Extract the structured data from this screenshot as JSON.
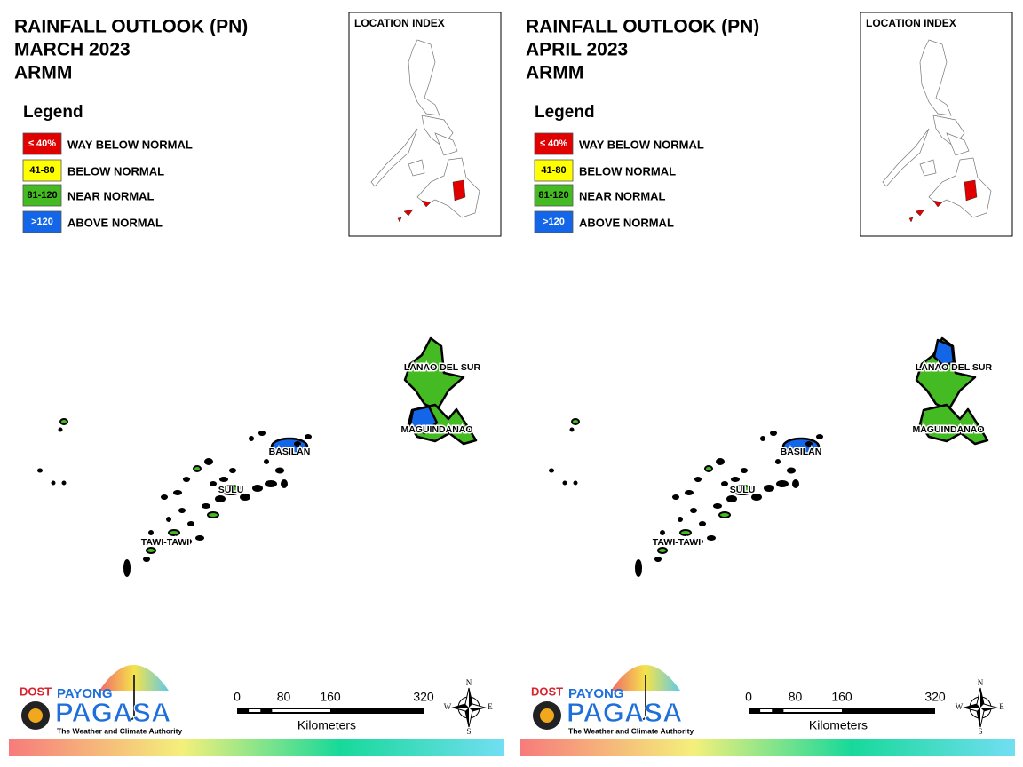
{
  "panels": [
    {
      "title": [
        "RAINFALL OUTLOOK (PN)",
        "MARCH 2023",
        "ARMM"
      ],
      "legend": {
        "title": "Legend",
        "items": [
          {
            "swatch": "≤ 40%",
            "label": "WAY BELOW NORMAL",
            "color": "#e00000"
          },
          {
            "swatch": "41-80",
            "label": "BELOW NORMAL",
            "color": "#ffff00"
          },
          {
            "swatch": "81-120",
            "label": "NEAR NORMAL",
            "color": "#44bb22"
          },
          {
            "swatch": ">120",
            "label": "ABOVE NORMAL",
            "color": "#1466e8"
          }
        ]
      },
      "inset_title": "LOCATION INDEX",
      "places": [
        "LANAO DEL SUR",
        "MAGUINDANAO",
        "BASILAN",
        "SULU",
        "TAWI-TAWI"
      ],
      "logo": {
        "dost": "DOST",
        "payong": "PAYONG",
        "pagasa": "PAGASA",
        "tagline": "The Weather and Climate Authority"
      },
      "scale": {
        "ticks": [
          0,
          80,
          160,
          320
        ],
        "unit": "Kilometers"
      },
      "compass": {
        "n": "N",
        "e": "E",
        "s": "S",
        "w": "W"
      }
    },
    {
      "title": [
        "RAINFALL OUTLOOK (PN)",
        "APRIL 2023",
        "ARMM"
      ],
      "legend": {
        "title": "Legend",
        "items": [
          {
            "swatch": "≤ 40%",
            "label": "WAY BELOW NORMAL",
            "color": "#e00000"
          },
          {
            "swatch": "41-80",
            "label": "BELOW NORMAL",
            "color": "#ffff00"
          },
          {
            "swatch": "81-120",
            "label": "NEAR NORMAL",
            "color": "#44bb22"
          },
          {
            "swatch": ">120",
            "label": "ABOVE NORMAL",
            "color": "#1466e8"
          }
        ]
      },
      "inset_title": "LOCATION INDEX",
      "places": [
        "LANAO DEL SUR",
        "MAGUINDANAO",
        "BASILAN",
        "SULU",
        "TAWI-TAWI"
      ],
      "logo": {
        "dost": "DOST",
        "payong": "PAYONG",
        "pagasa": "PAGASA",
        "tagline": "The Weather and Climate Authority"
      },
      "scale": {
        "ticks": [
          0,
          80,
          160,
          320
        ],
        "unit": "Kilometers"
      },
      "compass": {
        "n": "N",
        "e": "E",
        "s": "S",
        "w": "W"
      }
    }
  ]
}
